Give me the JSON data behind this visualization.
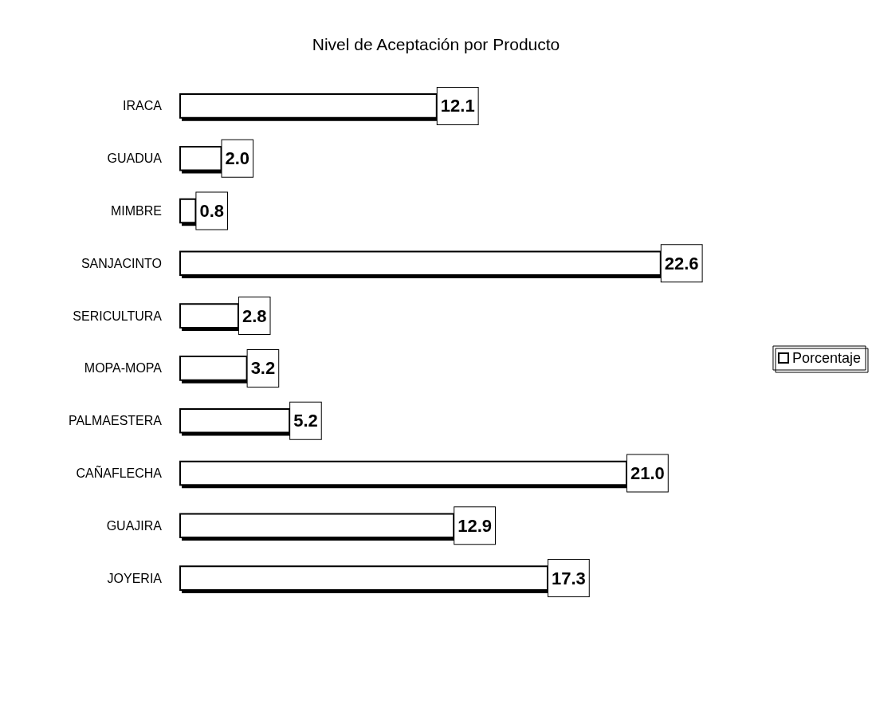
{
  "chart_data": {
    "type": "bar",
    "orientation": "horizontal",
    "title": "Nivel de Aceptación por Producto",
    "categories": [
      "IRACA",
      "GUADUA",
      "MIMBRE",
      "SANJACINTO",
      "SERICULTURA",
      "MOPA-MOPA",
      "PALMAESTERA",
      "CAÑAFLECHA",
      "GUAJIRA",
      "JOYERIA"
    ],
    "series": [
      {
        "name": "Porcentaje",
        "color": "#ffffff",
        "values": [
          12.1,
          2.0,
          0.8,
          22.6,
          2.8,
          3.2,
          5.2,
          21.0,
          12.9,
          17.3
        ],
        "value_labels": [
          "12.1",
          "2.0",
          "0.8",
          "22.6",
          "2.8",
          "3.2",
          "5.2",
          "21.0",
          "12.9",
          "17.3"
        ]
      }
    ],
    "legend": "right",
    "tick_labels": "y"
  }
}
